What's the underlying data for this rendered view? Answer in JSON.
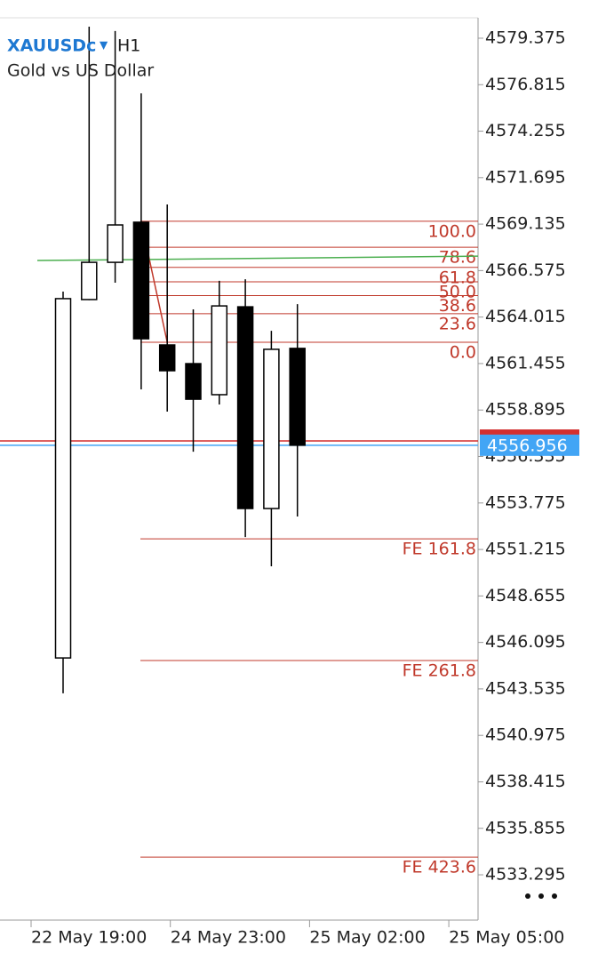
{
  "chart_data": {
    "type": "candlestick",
    "symbol": "XAUUSDc",
    "timeframe": "H1",
    "subtitle": "Gold vs US Dollar",
    "categories": [
      null,
      null,
      null,
      null,
      null,
      null,
      null,
      null,
      null,
      null
    ],
    "open": [
      4545.24,
      4564.98,
      4567.03,
      4569.24,
      4562.48,
      4561.45,
      4559.74,
      4564.58,
      4553.47,
      4562.29
    ],
    "high": [
      4565.42,
      4580.01,
      4579.77,
      4576.34,
      4570.22,
      4564.44,
      4566.01,
      4566.1,
      4563.26,
      4564.73
    ],
    "low": [
      4543.29,
      4564.95,
      4565.91,
      4560.03,
      4558.81,
      4556.6,
      4559.2,
      4551.9,
      4550.29,
      4553.03
    ],
    "close": [
      4565.03,
      4567.03,
      4569.09,
      4562.82,
      4561.06,
      4559.49,
      4564.63,
      4553.47,
      4562.24,
      4556.956
    ],
    "up_color": "#ffffff",
    "down_color": "#000000",
    "ylim": [
      4530.8,
      4580.5
    ],
    "yticks": [
      4579.375,
      4576.815,
      4574.255,
      4571.695,
      4569.135,
      4566.575,
      4564.015,
      4561.455,
      4558.895,
      4556.335,
      4553.775,
      4551.215,
      4548.655,
      4546.095,
      4543.535,
      4540.975,
      4538.415,
      4535.855,
      4533.295
    ],
    "x_labels": [
      "22 May 19:00",
      "24 May 23:00",
      "25 May 02:00",
      "25 May 05:00"
    ],
    "fib_color": "#c0392b",
    "fib_levels": [
      {
        "label": "100.0",
        "value": 4569.29
      },
      {
        "label": "78.6",
        "value": 4567.86
      },
      {
        "label": "61.8",
        "value": 4566.75
      },
      {
        "label": "50.0",
        "value": 4565.96
      },
      {
        "label": "38.6",
        "value": 4565.2
      },
      {
        "label": "23.6",
        "value": 4564.2
      },
      {
        "label": "0.0",
        "value": 4562.63
      },
      {
        "label": "FE 161.8",
        "value": 4551.8
      },
      {
        "label": "FE 261.8",
        "value": 4545.1
      },
      {
        "label": "FE 423.6",
        "value": 4534.27
      }
    ],
    "trend_line": {
      "color": "#4caf50",
      "values": [
        4567.13,
        4567.37
      ]
    },
    "ask_line": {
      "color": "#d32f2f",
      "value": 4557.19
    },
    "bid_line": {
      "color": "#42a5f5",
      "value": 4556.956
    }
  }
}
